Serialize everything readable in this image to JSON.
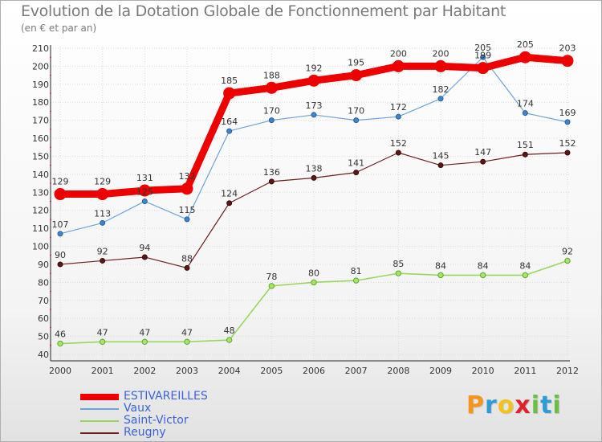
{
  "header": {
    "title": "Evolution de la Dotation Globale de Fonctionnement par Habitant",
    "subtitle": "(en € et par an)"
  },
  "chart_data": {
    "type": "line",
    "title": "Evolution de la Dotation Globale de Fonctionnement par Habitant",
    "subtitle": "(en € et par an)",
    "xlabel": "",
    "ylabel": "",
    "ylim": [
      40,
      210
    ],
    "yticks": [
      40,
      50,
      60,
      70,
      80,
      90,
      100,
      110,
      120,
      130,
      140,
      150,
      160,
      170,
      180,
      190,
      200,
      210
    ],
    "categories": [
      "2000",
      "2001",
      "2002",
      "2003",
      "2004",
      "2005",
      "2006",
      "2007",
      "2008",
      "2009",
      "2010",
      "2011",
      "2012"
    ],
    "legend_position": "bottom-left",
    "series": [
      {
        "name": "Reugny",
        "color": "#6b1f1f",
        "values": [
          90,
          92,
          94,
          88,
          124,
          136,
          138,
          141,
          152,
          145,
          147,
          151,
          152
        ]
      },
      {
        "name": "Saint-Victor",
        "color": "#9ad65e",
        "values": [
          46,
          47,
          47,
          47,
          48,
          78,
          80,
          81,
          85,
          84,
          84,
          84,
          92
        ]
      },
      {
        "name": "Vaux",
        "color": "#6ea3d8",
        "values": [
          107,
          113,
          125,
          115,
          164,
          170,
          173,
          170,
          172,
          182,
          205,
          174,
          169
        ]
      },
      {
        "name": "ESTIVAREILLES",
        "color": "#ee0000",
        "values": [
          129,
          129,
          131,
          132,
          185,
          188,
          192,
          195,
          200,
          200,
          199,
          205,
          203
        ]
      }
    ],
    "data_labels": {
      "ESTIVAREILLES": [
        "129",
        "129",
        "131",
        "132",
        "185",
        "188",
        "192",
        "195",
        "200",
        "200",
        "199",
        "205",
        "203"
      ],
      "Vaux": [
        "107",
        "113",
        "125",
        "115",
        "164",
        "170",
        "173",
        "170",
        "172",
        "182",
        "205",
        "174",
        "169"
      ],
      "Reugny": [
        "90",
        "92",
        "94",
        "88",
        "124",
        "136",
        "138",
        "141",
        "152",
        "145",
        "147",
        "151",
        "152"
      ],
      "Saint-Victor": [
        "46",
        "47",
        "47",
        "47",
        "48",
        "78",
        "80",
        "81",
        "85",
        "84",
        "84",
        "84",
        "92"
      ]
    }
  },
  "legend": {
    "items": [
      {
        "label": "ESTIVAREILLES",
        "color": "#ee0000"
      },
      {
        "label": "Vaux",
        "color": "#6ea3d8"
      },
      {
        "label": "Saint-Victor",
        "color": "#9ad65e"
      },
      {
        "label": "Reugny",
        "color": "#6b1f1f"
      }
    ]
  },
  "brand": {
    "letters": [
      {
        "ch": "P",
        "color": "#f7941d"
      },
      {
        "ch": "r",
        "color": "#2e9ad6"
      },
      {
        "ch": "o",
        "color": "#f4c21a"
      },
      {
        "ch": "x",
        "color": "#e4212b"
      },
      {
        "ch": "i",
        "color": "#6dbe45"
      },
      {
        "ch": "t",
        "color": "#2e9ad6"
      },
      {
        "ch": "i",
        "color": "#6dbe45"
      }
    ]
  }
}
